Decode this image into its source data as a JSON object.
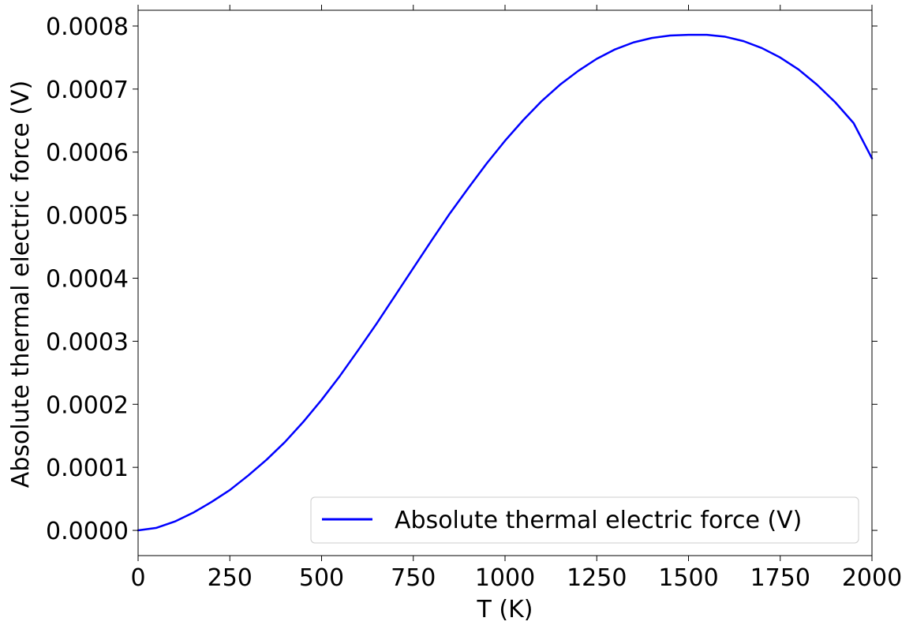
{
  "chart_data": {
    "type": "line",
    "title": "",
    "xlabel": "T (K)",
    "ylabel": "Absolute thermal electric force (V)",
    "xlim": [
      0,
      2000
    ],
    "ylim": [
      -4e-05,
      0.000825
    ],
    "x_ticks": [
      0,
      250,
      500,
      750,
      1000,
      1250,
      1500,
      1750,
      2000
    ],
    "x_tick_labels": [
      "0",
      "250",
      "500",
      "750",
      "1000",
      "1250",
      "1500",
      "1750",
      "2000"
    ],
    "y_ticks": [
      0,
      0.0001,
      0.0002,
      0.0003,
      0.0004,
      0.0005,
      0.0006,
      0.0007,
      0.0008
    ],
    "y_tick_labels": [
      "0.0000",
      "0.0001",
      "0.0002",
      "0.0003",
      "0.0004",
      "0.0005",
      "0.0006",
      "0.0007",
      "0.0008"
    ],
    "grid": false,
    "legend_position": "bottom-right",
    "series": [
      {
        "name": "Absolute thermal electric force (V)",
        "color": "#0000ff",
        "x": [
          0,
          50,
          100,
          150,
          200,
          250,
          300,
          350,
          400,
          450,
          500,
          550,
          600,
          650,
          700,
          750,
          800,
          850,
          900,
          950,
          1000,
          1050,
          1100,
          1150,
          1200,
          1250,
          1300,
          1350,
          1400,
          1450,
          1500,
          1530,
          1550,
          1600,
          1650,
          1700,
          1750,
          1800,
          1850,
          1900,
          1950,
          2000
        ],
        "y": [
          0.0,
          4e-06,
          1.4e-05,
          2.8e-05,
          4.5e-05,
          6.4e-05,
          8.7e-05,
          0.000112,
          0.00014,
          0.000172,
          0.000207,
          0.000245,
          0.000286,
          0.000328,
          0.000372,
          0.000416,
          0.00046,
          0.000503,
          0.000543,
          0.000582,
          0.000618,
          0.000651,
          0.000681,
          0.000707,
          0.000729,
          0.000748,
          0.000763,
          0.000774,
          0.000781,
          0.000785,
          0.000786,
          0.000786,
          0.000786,
          0.000783,
          0.000776,
          0.000765,
          0.00075,
          0.000731,
          0.000707,
          0.000679,
          0.000646,
          0.00059
        ]
      }
    ]
  }
}
